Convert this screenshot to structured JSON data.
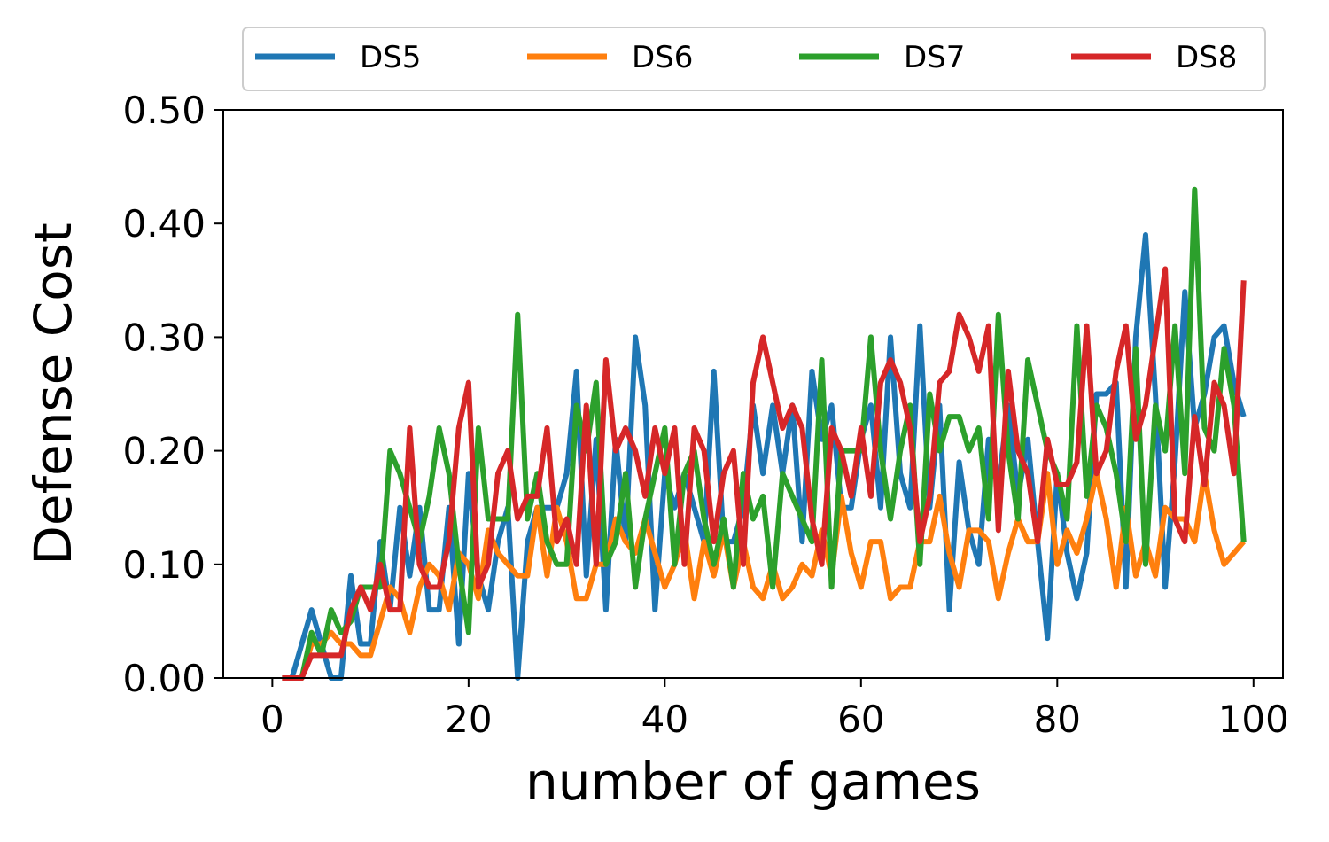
{
  "chart_data": {
    "type": "line",
    "xlabel": "number of games",
    "ylabel": "Defense Cost",
    "xlim": [
      -5,
      103
    ],
    "ylim": [
      0,
      0.5
    ],
    "xticks": [
      0,
      20,
      40,
      60,
      80,
      100
    ],
    "xtick_labels": [
      "0",
      "20",
      "40",
      "60",
      "80",
      "100"
    ],
    "yticks": [
      0,
      0.1,
      0.2,
      0.3,
      0.4,
      0.5
    ],
    "ytick_labels": [
      "0.00",
      "0.10",
      "0.20",
      "0.30",
      "0.40",
      "0.50"
    ],
    "grid": false,
    "legend_position": "top",
    "series": [
      {
        "name": "DS5",
        "color": "#1f77b4",
        "values": [
          0,
          0,
          0.03,
          0.06,
          0.03,
          0,
          0,
          0.09,
          0.03,
          0.03,
          0.12,
          0.06,
          0.15,
          0.09,
          0.15,
          0.06,
          0.06,
          0.15,
          0.03,
          0.18,
          0.09,
          0.06,
          0.12,
          0.15,
          0,
          0.12,
          0.15,
          0.15,
          0.15,
          0.18,
          0.27,
          0.09,
          0.21,
          0.06,
          0.21,
          0.12,
          0.3,
          0.24,
          0.06,
          0.18,
          0.15,
          0.18,
          0.15,
          0.12,
          0.27,
          0.12,
          0.12,
          0.15,
          0.24,
          0.18,
          0.24,
          0.18,
          0.24,
          0.12,
          0.27,
          0.21,
          0.24,
          0.15,
          0.15,
          0.21,
          0.24,
          0.15,
          0.3,
          0.18,
          0.15,
          0.31,
          0.15,
          0.24,
          0.06,
          0.19,
          0.13,
          0.1,
          0.21,
          0.17,
          0.24,
          0.16,
          0.21,
          0.12,
          0.035,
          0.18,
          0.11,
          0.07,
          0.11,
          0.25,
          0.25,
          0.26,
          0.08,
          0.3,
          0.39,
          0.25,
          0.08,
          0.19,
          0.34,
          0.22,
          0.25,
          0.3,
          0.31,
          0.26,
          0.23
        ]
      },
      {
        "name": "DS6",
        "color": "#ff7f0e",
        "values": [
          0,
          0,
          0,
          0.03,
          0.03,
          0.04,
          0.03,
          0.03,
          0.02,
          0.02,
          0.05,
          0.08,
          0.07,
          0.04,
          0.08,
          0.1,
          0.09,
          0.06,
          0.11,
          0.1,
          0.07,
          0.13,
          0.11,
          0.1,
          0.09,
          0.09,
          0.15,
          0.09,
          0.15,
          0.12,
          0.07,
          0.07,
          0.1,
          0.1,
          0.14,
          0.12,
          0.11,
          0.14,
          0.11,
          0.08,
          0.1,
          0.13,
          0.07,
          0.12,
          0.09,
          0.13,
          0.08,
          0.12,
          0.08,
          0.07,
          0.1,
          0.07,
          0.08,
          0.1,
          0.09,
          0.13,
          0.09,
          0.16,
          0.11,
          0.08,
          0.12,
          0.12,
          0.07,
          0.08,
          0.08,
          0.12,
          0.12,
          0.16,
          0.11,
          0.08,
          0.13,
          0.13,
          0.12,
          0.07,
          0.11,
          0.14,
          0.12,
          0.12,
          0.18,
          0.1,
          0.13,
          0.11,
          0.14,
          0.18,
          0.14,
          0.08,
          0.15,
          0.09,
          0.12,
          0.09,
          0.15,
          0.14,
          0.14,
          0.12,
          0.18,
          0.13,
          0.1,
          0.11,
          0.12
        ]
      },
      {
        "name": "DS7",
        "color": "#2ca02c",
        "values": [
          0,
          0,
          0,
          0.04,
          0.02,
          0.06,
          0.04,
          0.05,
          0.08,
          0.08,
          0.08,
          0.2,
          0.18,
          0.15,
          0.12,
          0.16,
          0.22,
          0.18,
          0.1,
          0.04,
          0.22,
          0.14,
          0.14,
          0.14,
          0.32,
          0.14,
          0.18,
          0.12,
          0.1,
          0.1,
          0.24,
          0.2,
          0.26,
          0.1,
          0.12,
          0.18,
          0.08,
          0.14,
          0.18,
          0.22,
          0.1,
          0.18,
          0.2,
          0.14,
          0.1,
          0.14,
          0.08,
          0.18,
          0.14,
          0.16,
          0.08,
          0.18,
          0.16,
          0.14,
          0.12,
          0.28,
          0.08,
          0.2,
          0.2,
          0.2,
          0.3,
          0.2,
          0.14,
          0.2,
          0.24,
          0.1,
          0.25,
          0.2,
          0.23,
          0.23,
          0.2,
          0.22,
          0.14,
          0.32,
          0.2,
          0.14,
          0.28,
          0.24,
          0.2,
          0.18,
          0.14,
          0.31,
          0.16,
          0.24,
          0.22,
          0.18,
          0.12,
          0.29,
          0.1,
          0.24,
          0.2,
          0.31,
          0.18,
          0.43,
          0.22,
          0.2,
          0.29,
          0.24,
          0.12
        ]
      },
      {
        "name": "DS8",
        "color": "#d62728",
        "values": [
          0,
          0,
          0,
          0.02,
          0.02,
          0.02,
          0.02,
          0.06,
          0.08,
          0.06,
          0.1,
          0.06,
          0.06,
          0.22,
          0.1,
          0.08,
          0.08,
          0.12,
          0.22,
          0.26,
          0.08,
          0.1,
          0.18,
          0.2,
          0.14,
          0.16,
          0.16,
          0.22,
          0.12,
          0.14,
          0.1,
          0.24,
          0.1,
          0.28,
          0.2,
          0.22,
          0.2,
          0.16,
          0.22,
          0.18,
          0.22,
          0.1,
          0.22,
          0.2,
          0.12,
          0.18,
          0.2,
          0.1,
          0.26,
          0.3,
          0.26,
          0.22,
          0.24,
          0.22,
          0.14,
          0.1,
          0.22,
          0.2,
          0.16,
          0.22,
          0.16,
          0.26,
          0.28,
          0.26,
          0.22,
          0.12,
          0.16,
          0.26,
          0.27,
          0.32,
          0.3,
          0.27,
          0.31,
          0.13,
          0.27,
          0.2,
          0.18,
          0.12,
          0.21,
          0.17,
          0.17,
          0.19,
          0.31,
          0.18,
          0.2,
          0.27,
          0.31,
          0.21,
          0.24,
          0.3,
          0.36,
          0.14,
          0.12,
          0.23,
          0.17,
          0.26,
          0.24,
          0.18,
          0.35
        ]
      }
    ]
  }
}
